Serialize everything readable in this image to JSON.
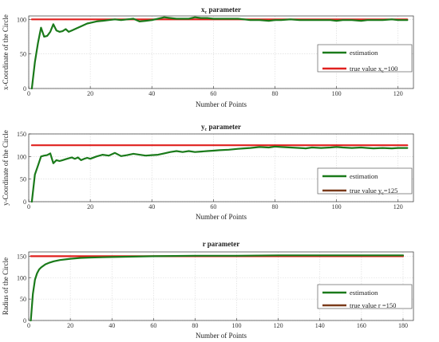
{
  "chart_data": [
    {
      "type": "line",
      "title": "xc parameter",
      "title_main": "x",
      "title_sub": "c",
      "title_rest": " parameter",
      "xlabel": "Number of Points",
      "ylabel": "x-Coordinate of the Circle",
      "xlim": [
        0,
        125
      ],
      "ylim": [
        0,
        105
      ],
      "xticks": [
        0,
        20,
        40,
        60,
        80,
        100,
        120
      ],
      "yticks": [
        0,
        50,
        100
      ],
      "grid": true,
      "legend_position": "right",
      "series": [
        {
          "name": "estimation",
          "color": "#1a7a1a",
          "x": [
            1,
            2,
            3,
            4,
            5,
            6,
            7,
            8,
            9,
            10,
            11,
            12,
            13,
            14,
            15,
            16,
            17,
            18,
            19,
            20,
            22,
            24,
            26,
            28,
            30,
            32,
            34,
            36,
            38,
            40,
            42,
            44,
            46,
            48,
            50,
            52,
            54,
            56,
            58,
            60,
            62,
            65,
            68,
            70,
            72,
            75,
            78,
            80,
            82,
            85,
            88,
            90,
            92,
            95,
            98,
            100,
            102,
            105,
            108,
            110,
            112,
            115,
            118,
            120,
            123
          ],
          "y": [
            0,
            38,
            66,
            88,
            75,
            76,
            82,
            93,
            84,
            82,
            83,
            86,
            82,
            84,
            86,
            88,
            90,
            92,
            94,
            95,
            97,
            98,
            99,
            100,
            99,
            100,
            101,
            97,
            98,
            99,
            101,
            103,
            102,
            101,
            101,
            101,
            103,
            102,
            102,
            101,
            101,
            101,
            101,
            100,
            99,
            99,
            98,
            99,
            99,
            100,
            99,
            99,
            99,
            99,
            99,
            98,
            99,
            99,
            98,
            99,
            99,
            99,
            100,
            99,
            99
          ]
        },
        {
          "name": "true value xc=100",
          "label_main": "true value x",
          "label_sub": "c",
          "label_rest": "=100",
          "color": "#e0201e",
          "x": [
            1,
            123
          ],
          "y": [
            100,
            100
          ]
        }
      ]
    },
    {
      "type": "line",
      "title": "yc parameter",
      "title_main": "y",
      "title_sub": "c",
      "title_rest": " parameter",
      "xlabel": "Number of Points",
      "ylabel": "y-Coordinate of the Circle",
      "xlim": [
        0,
        125
      ],
      "ylim": [
        0,
        150
      ],
      "xticks": [
        0,
        20,
        40,
        60,
        80,
        100,
        120
      ],
      "yticks": [
        0,
        50,
        100,
        150
      ],
      "grid": true,
      "legend_position": "right",
      "series": [
        {
          "name": "estimation",
          "color": "#1a7a1a",
          "x": [
            1,
            2,
            3,
            4,
            5,
            6,
            7,
            8,
            9,
            10,
            11,
            12,
            13,
            14,
            15,
            16,
            17,
            18,
            19,
            20,
            22,
            24,
            26,
            28,
            30,
            32,
            34,
            36,
            38,
            40,
            42,
            44,
            46,
            48,
            50,
            52,
            54,
            56,
            58,
            60,
            62,
            65,
            68,
            70,
            72,
            75,
            78,
            80,
            82,
            85,
            88,
            90,
            92,
            95,
            98,
            100,
            102,
            105,
            108,
            110,
            112,
            115,
            118,
            120,
            123
          ],
          "y": [
            0,
            60,
            80,
            100,
            102,
            103,
            107,
            85,
            92,
            90,
            92,
            94,
            96,
            98,
            95,
            98,
            92,
            95,
            97,
            95,
            100,
            104,
            102,
            108,
            101,
            103,
            106,
            104,
            102,
            103,
            104,
            107,
            110,
            112,
            110,
            112,
            110,
            111,
            112,
            113,
            114,
            115,
            117,
            118,
            119,
            121,
            120,
            122,
            121,
            120,
            119,
            118,
            120,
            119,
            120,
            121,
            120,
            119,
            120,
            119,
            118,
            119,
            118,
            119,
            119
          ]
        },
        {
          "name": "true value yc=125",
          "label_main": "true value y",
          "label_sub": "c",
          "label_rest": "=125",
          "color": "#e0201e",
          "legend_color": "#7a3a1a",
          "x": [
            1,
            123
          ],
          "y": [
            125,
            125
          ]
        }
      ]
    },
    {
      "type": "line",
      "title": "r parameter",
      "xlabel": "Number of Points",
      "ylabel": "Radius of the Circle",
      "xlim": [
        0,
        185
      ],
      "ylim": [
        0,
        160
      ],
      "xticks": [
        0,
        20,
        40,
        60,
        80,
        100,
        120,
        140,
        160,
        180
      ],
      "yticks": [
        0,
        50,
        100,
        150
      ],
      "grid": true,
      "legend_position": "lower right",
      "series": [
        {
          "name": "estimation",
          "color": "#1a7a1a",
          "x": [
            1,
            2,
            3,
            4,
            5,
            6,
            8,
            10,
            12,
            15,
            20,
            25,
            30,
            40,
            50,
            60,
            80,
            100,
            120,
            140,
            160,
            180
          ],
          "y": [
            0,
            62,
            95,
            110,
            119,
            124,
            131,
            135,
            138,
            141,
            144,
            146,
            147,
            148,
            149,
            150,
            151,
            151,
            152,
            152,
            152,
            152
          ]
        },
        {
          "name": "true value r =150",
          "color": "#e0201e",
          "legend_color": "#7a3a1a",
          "x": [
            1,
            180
          ],
          "y": [
            150,
            150
          ]
        }
      ]
    }
  ]
}
